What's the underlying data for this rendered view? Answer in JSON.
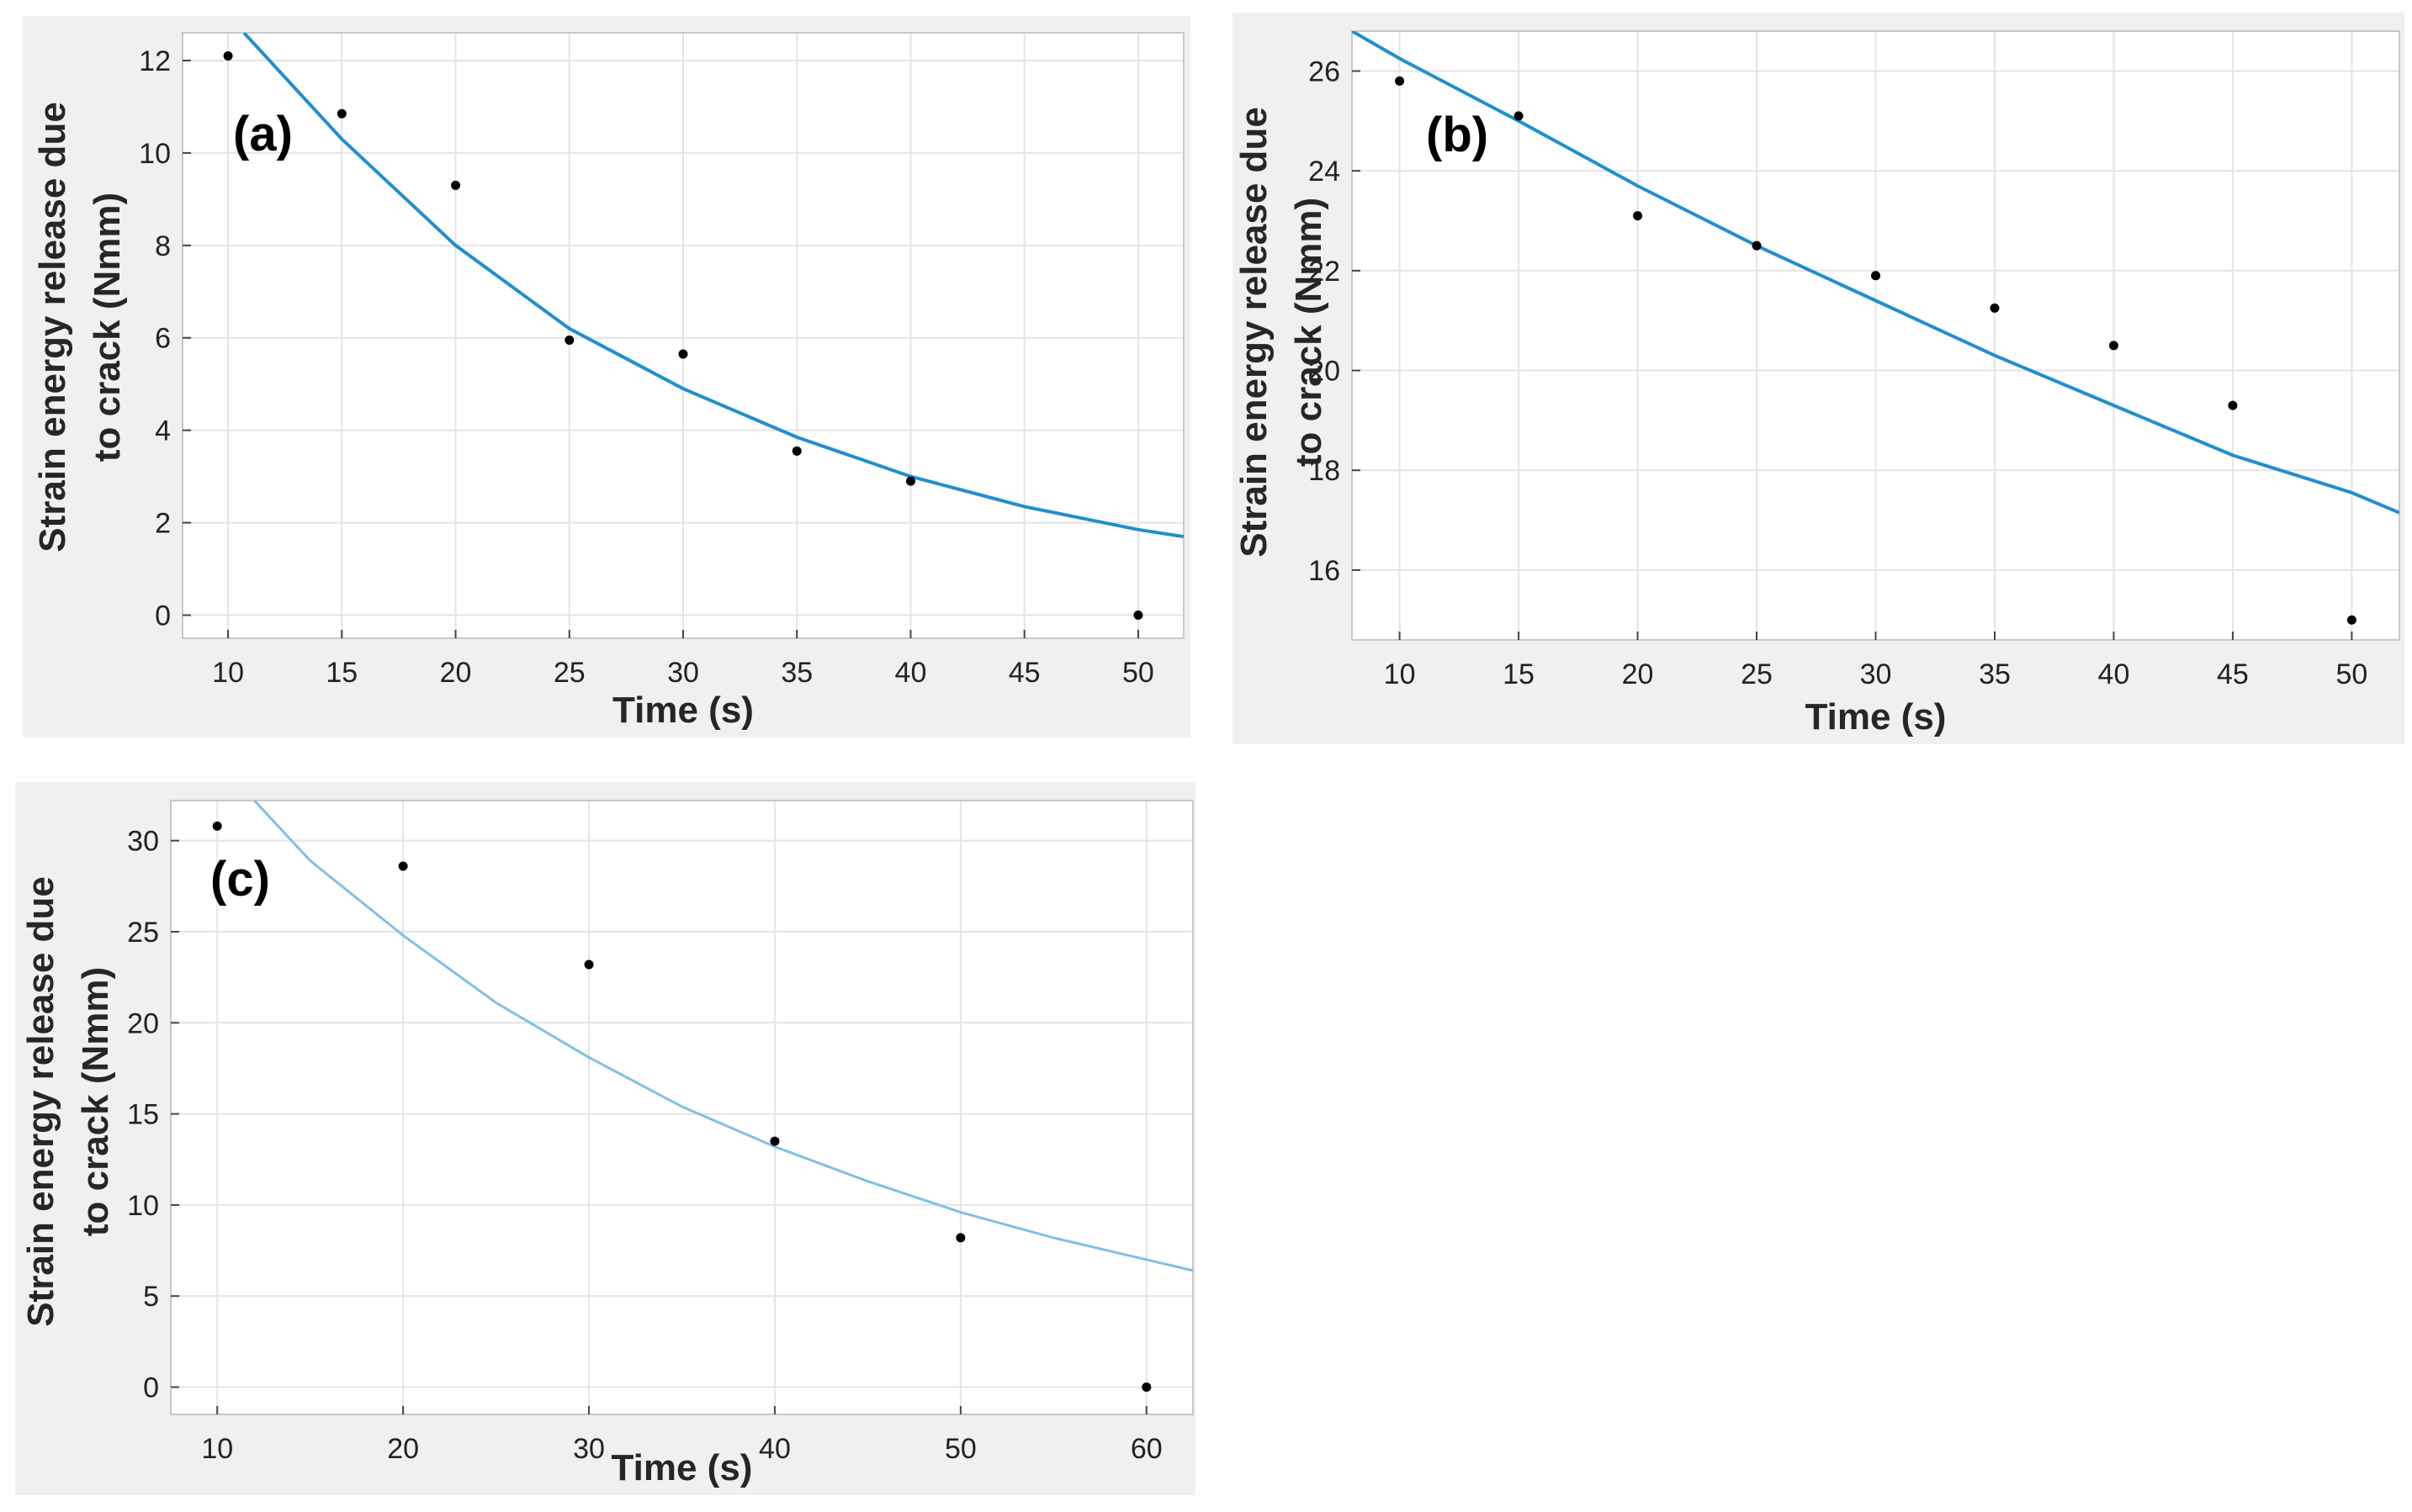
{
  "colors": {
    "fit_line": "#1f8fd0",
    "fit_line_light": "#7fc0e6",
    "points": "#000000"
  },
  "chart_data": [
    {
      "type": "scatter",
      "panel_label": "(a)",
      "xlabel": "Time (s)",
      "ylabel_line1": "Strain energy release due",
      "ylabel_line2": "to crack (Nmm)",
      "xlim": [
        8,
        52
      ],
      "ylim": [
        -0.5,
        12.6
      ],
      "xticks": [
        10,
        15,
        20,
        25,
        30,
        35,
        40,
        45,
        50
      ],
      "yticks": [
        0,
        2,
        4,
        6,
        8,
        10,
        12
      ],
      "grid": true,
      "series": [
        {
          "name": "data",
          "kind": "points",
          "x": [
            10,
            15,
            20,
            25,
            30,
            35,
            40,
            50
          ],
          "y": [
            12.1,
            10.85,
            9.3,
            5.95,
            5.65,
            3.55,
            2.9,
            0.0
          ]
        },
        {
          "name": "fit",
          "kind": "exponential",
          "x": [
            10.7,
            15,
            20,
            25,
            30,
            35,
            40,
            45,
            50,
            52
          ],
          "y": [
            12.6,
            10.3,
            8.0,
            6.2,
            4.9,
            3.85,
            3.0,
            2.35,
            1.85,
            1.7
          ]
        }
      ]
    },
    {
      "type": "scatter",
      "panel_label": "(b)",
      "xlabel": "Time (s)",
      "ylabel_line1": "Strain energy release due",
      "ylabel_line2": "to crack (Nmm)",
      "xlim": [
        8,
        52
      ],
      "ylim": [
        14.6,
        26.8
      ],
      "xticks": [
        10,
        15,
        20,
        25,
        30,
        35,
        40,
        45,
        50
      ],
      "yticks": [
        16,
        18,
        20,
        22,
        24,
        26
      ],
      "grid": true,
      "series": [
        {
          "name": "data",
          "kind": "points",
          "x": [
            10,
            15,
            20,
            25,
            30,
            35,
            40,
            45,
            50
          ],
          "y": [
            25.8,
            25.1,
            23.1,
            22.5,
            21.9,
            21.25,
            20.5,
            19.3,
            15.0
          ]
        },
        {
          "name": "fit",
          "kind": "exponential",
          "x": [
            8,
            10,
            15,
            20,
            25,
            30,
            35,
            40,
            45,
            50,
            52
          ],
          "y": [
            26.8,
            26.25,
            25.0,
            23.7,
            22.5,
            21.4,
            20.3,
            19.3,
            18.3,
            17.55,
            17.15
          ]
        }
      ]
    },
    {
      "type": "scatter",
      "panel_label": "(c)",
      "xlabel": "Time (s)",
      "ylabel_line1": "Strain energy release due",
      "ylabel_line2": "to crack (Nmm)",
      "xlim": [
        7.5,
        62.5
      ],
      "ylim": [
        -1.5,
        32.2
      ],
      "xticks": [
        10,
        20,
        30,
        40,
        50,
        60
      ],
      "yticks": [
        0,
        5,
        10,
        15,
        20,
        25,
        30
      ],
      "grid": true,
      "series": [
        {
          "name": "data",
          "kind": "points",
          "x": [
            10,
            20,
            30,
            40,
            50,
            60
          ],
          "y": [
            30.8,
            28.6,
            23.2,
            13.5,
            8.2,
            0.0
          ]
        },
        {
          "name": "fit",
          "kind": "exponential",
          "x": [
            12,
            15,
            20,
            25,
            30,
            35,
            40,
            45,
            50,
            55,
            60,
            62.5
          ],
          "y": [
            32.2,
            28.9,
            24.8,
            21.1,
            18.1,
            15.4,
            13.2,
            11.3,
            9.6,
            8.2,
            7.0,
            6.4
          ]
        }
      ]
    }
  ]
}
